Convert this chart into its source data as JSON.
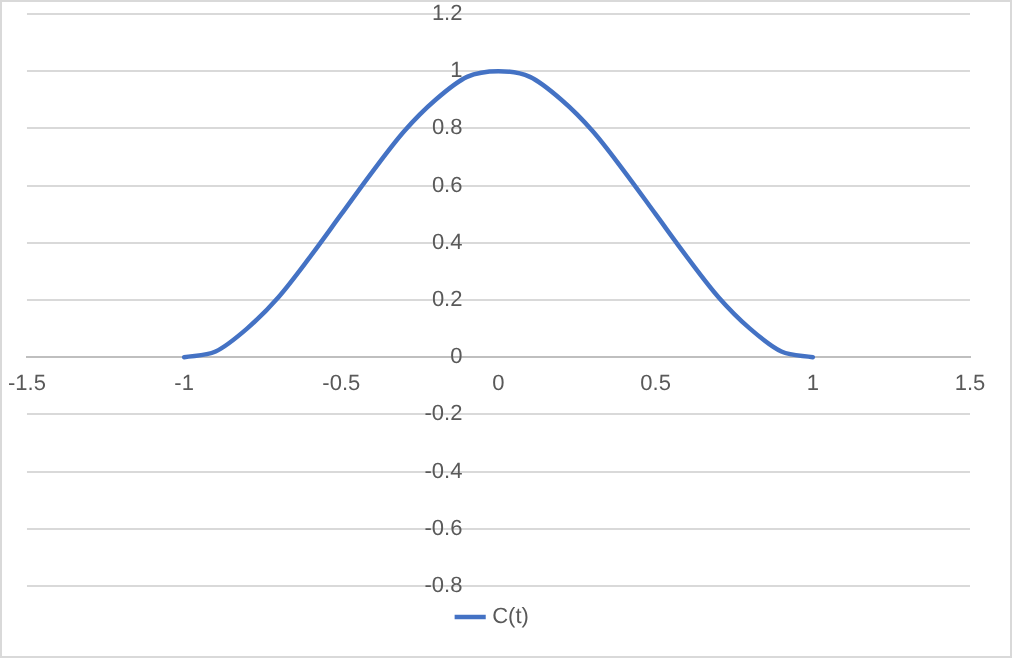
{
  "chart_data": {
    "type": "line",
    "x": [
      -1,
      -0.9,
      -0.8,
      -0.7,
      -0.6,
      -0.5,
      -0.4,
      -0.3,
      -0.2,
      -0.1,
      0,
      0.1,
      0.2,
      0.3,
      0.4,
      0.5,
      0.6,
      0.7,
      0.8,
      0.9,
      1
    ],
    "series": [
      {
        "name": "C(t)",
        "color": "#4472c4",
        "values": [
          0,
          0.02,
          0.1,
          0.21,
          0.35,
          0.5,
          0.65,
          0.79,
          0.9,
          0.98,
          1,
          0.98,
          0.9,
          0.79,
          0.65,
          0.5,
          0.35,
          0.21,
          0.1,
          0.02,
          0
        ]
      }
    ],
    "xlim": [
      -1.5,
      1.5
    ],
    "xticks": [
      -1.5,
      -1,
      -0.5,
      0,
      0.5,
      1,
      1.5
    ],
    "ylim": [
      -0.8,
      1.2
    ],
    "yticks": [
      -0.8,
      -0.6,
      -0.4,
      -0.2,
      0,
      0.2,
      0.4,
      0.6,
      0.8,
      1,
      1.2
    ],
    "grid": "y",
    "legend": "bottom",
    "marker": "none",
    "line_style": "solid"
  }
}
